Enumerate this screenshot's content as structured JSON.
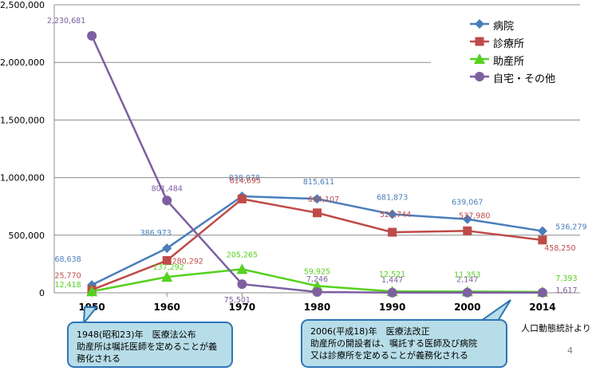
{
  "chart_data": {
    "type": "line",
    "categories": [
      "1950",
      "1960",
      "1970",
      "1980",
      "1990",
      "2000",
      "2014"
    ],
    "ylim": [
      0,
      2500000
    ],
    "yticks": [
      "0",
      "500,000",
      "1,000,000",
      "1,500,000",
      "2,000,000",
      "2,500,000"
    ],
    "ytick_values": [
      0,
      500000,
      1000000,
      1500000,
      2000000,
      2500000
    ],
    "grid": true,
    "legend_position": "top-right",
    "series": [
      {
        "name": "病院",
        "color": "#4a7ebb",
        "marker": "diamond",
        "values": [
          68638,
          386973,
          838078,
          815611,
          681873,
          639067,
          536279
        ],
        "labels": [
          "68,638",
          "386,973",
          "838,078",
          "815,611",
          "681,873",
          "639,067",
          "536,279"
        ]
      },
      {
        "name": "診療所",
        "color": "#be4b48",
        "marker": "square",
        "values": [
          25770,
          280292,
          814695,
          694107,
          525744,
          537980,
          458250
        ],
        "labels": [
          "25,770",
          "280,292",
          "814,695",
          "694,107",
          "525,744",
          "537,980",
          "458,250"
        ]
      },
      {
        "name": "助産所",
        "color": "#55d11f",
        "marker": "triangle",
        "values": [
          12418,
          137292,
          205265,
          59925,
          12521,
          11353,
          7393
        ],
        "labels": [
          "12,418",
          "137,292",
          "205,265",
          "59,925",
          "12,521",
          "11,353",
          "7,393"
        ]
      },
      {
        "name": "自宅・その他",
        "color": "#7d60a0",
        "marker": "circle",
        "values": [
          2230681,
          801484,
          75501,
          7246,
          1447,
          2147,
          1617
        ],
        "labels": [
          "2,230,681",
          "801,484",
          "75,501",
          "7,246",
          "1,447",
          "2,147",
          "1,617"
        ]
      }
    ]
  },
  "callouts": {
    "c1948": {
      "line1": "1948(昭和23)年　医療法公布",
      "line2": "助産所は嘱託医師を定めることが義務化される"
    },
    "c2006": {
      "line1": "2006(平成18)年　医療法改正",
      "line2": "助産所の開設者は、嘱託する医師及び病院",
      "line3": "又は診療所を定めることが義務化される"
    }
  },
  "source_note": "人口動態統計より",
  "page_number": "4"
}
